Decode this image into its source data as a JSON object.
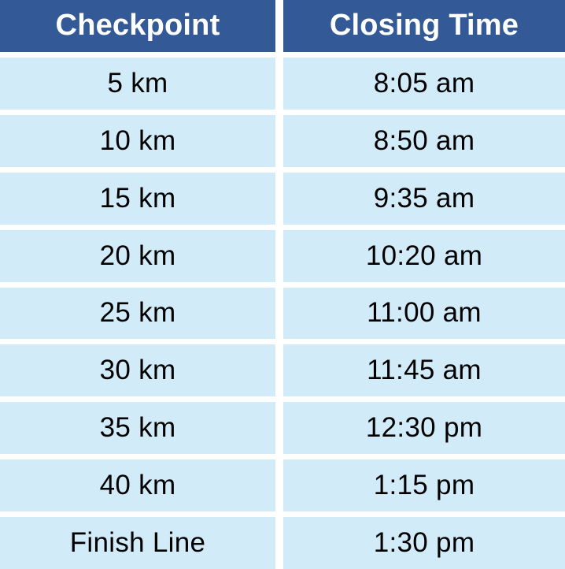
{
  "colors": {
    "header_bg": "#335A96",
    "header_text": "#FFFFFF",
    "row_bg": "#D2EBF9",
    "row_text": "#000000",
    "gap_bg": "#FFFFFF"
  },
  "table": {
    "columns": [
      {
        "key": "checkpoint",
        "label": "Checkpoint"
      },
      {
        "key": "closing_time",
        "label": "Closing Time"
      }
    ],
    "rows": [
      {
        "checkpoint": "5 km",
        "closing_time": "8:05 am"
      },
      {
        "checkpoint": "10 km",
        "closing_time": "8:50 am"
      },
      {
        "checkpoint": "15 km",
        "closing_time": "9:35 am"
      },
      {
        "checkpoint": "20 km",
        "closing_time": "10:20 am"
      },
      {
        "checkpoint": "25 km",
        "closing_time": "11:00 am"
      },
      {
        "checkpoint": "30 km",
        "closing_time": "11:45 am"
      },
      {
        "checkpoint": "35 km",
        "closing_time": "12:30 pm"
      },
      {
        "checkpoint": "40 km",
        "closing_time": "1:15 pm"
      },
      {
        "checkpoint": "Finish Line",
        "closing_time": "1:30 pm"
      }
    ]
  },
  "chart_data": {
    "type": "table",
    "columns": [
      "Checkpoint",
      "Closing Time"
    ],
    "rows": [
      [
        "5 km",
        "8:05 am"
      ],
      [
        "10 km",
        "8:50 am"
      ],
      [
        "15 km",
        "9:35 am"
      ],
      [
        "20 km",
        "10:20 am"
      ],
      [
        "25 km",
        "11:00 am"
      ],
      [
        "30 km",
        "11:45 am"
      ],
      [
        "35 km",
        "12:30 pm"
      ],
      [
        "40 km",
        "1:15 pm"
      ],
      [
        "Finish Line",
        "1:30 pm"
      ]
    ],
    "layout": {
      "header_position": "top",
      "grid": "white-gutters",
      "text_align": "center"
    }
  }
}
